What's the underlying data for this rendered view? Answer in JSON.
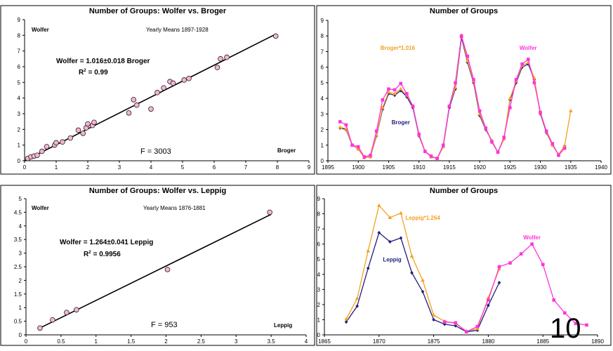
{
  "slide_number": "10",
  "chart_data": [
    {
      "type": "scatter",
      "title": "Number of Groups: Wolfer vs. Broger",
      "series_label_y": "Wolfer",
      "series_label_x": "Broger",
      "subtitle": "Yearly Means 1897-1928",
      "equation": "Wolfer = 1.016±0.018 Broger",
      "r2_label": "R",
      "r2_exp": "2",
      "r2_value": "= 0.99",
      "f_text": "F = 3003",
      "xlim": [
        0,
        9
      ],
      "ylim": [
        0,
        9
      ],
      "xticks": [
        0,
        1,
        2,
        3,
        4,
        5,
        6,
        7,
        8,
        9
      ],
      "yticks": [
        0,
        1,
        2,
        3,
        4,
        5,
        6,
        7,
        8,
        9
      ],
      "fit": {
        "slope": 1.016,
        "x": [
          0,
          7.95
        ]
      },
      "colors": {
        "point": "#f7b4d4",
        "line": "#000000"
      },
      "points": [
        [
          0.1,
          0.15
        ],
        [
          0.2,
          0.25
        ],
        [
          0.3,
          0.3
        ],
        [
          0.4,
          0.35
        ],
        [
          0.55,
          0.6
        ],
        [
          0.7,
          0.9
        ],
        [
          0.95,
          1.0
        ],
        [
          1.0,
          1.15
        ],
        [
          1.2,
          1.2
        ],
        [
          1.45,
          1.45
        ],
        [
          1.7,
          1.95
        ],
        [
          1.85,
          1.75
        ],
        [
          1.95,
          2.1
        ],
        [
          2.0,
          2.35
        ],
        [
          2.15,
          2.25
        ],
        [
          2.2,
          2.45
        ],
        [
          3.3,
          3.05
        ],
        [
          3.45,
          3.9
        ],
        [
          3.55,
          3.55
        ],
        [
          4.0,
          3.3
        ],
        [
          4.2,
          4.35
        ],
        [
          4.4,
          4.65
        ],
        [
          4.6,
          5.05
        ],
        [
          4.7,
          4.95
        ],
        [
          5.05,
          5.15
        ],
        [
          5.2,
          5.25
        ],
        [
          6.1,
          5.95
        ],
        [
          6.2,
          6.5
        ],
        [
          6.4,
          6.6
        ],
        [
          7.95,
          7.95
        ]
      ]
    },
    {
      "type": "line",
      "title": "Number of Groups",
      "xlim": [
        1895,
        1940
      ],
      "ylim": [
        0,
        9
      ],
      "xticks": [
        1895,
        1900,
        1905,
        1910,
        1915,
        1920,
        1925,
        1930,
        1935,
        1940
      ],
      "yticks": [
        0,
        1,
        2,
        3,
        4,
        5,
        6,
        7,
        8,
        9
      ],
      "series": [
        {
          "name": "Broger",
          "color": "#1f1f7a",
          "marker": "diamond",
          "x": [
            1897,
            1898,
            1899,
            1900,
            1901,
            1902,
            1903,
            1904,
            1905,
            1906,
            1907,
            1908,
            1909,
            1910,
            1911,
            1912,
            1913,
            1914,
            1915,
            1916,
            1917,
            1918,
            1919,
            1920,
            1921,
            1922,
            1923,
            1924,
            1925,
            1926,
            1927,
            1928,
            1929,
            1930,
            1931,
            1932,
            1933,
            1934
          ],
          "values": [
            2.1,
            2.0,
            1.0,
            0.75,
            0.2,
            0.25,
            1.6,
            3.3,
            4.3,
            4.2,
            4.5,
            4.1,
            3.4,
            1.6,
            0.6,
            0.25,
            0.15,
            0.9,
            3.4,
            4.6,
            7.9,
            6.3,
            5.0,
            2.9,
            2.0,
            1.3,
            0.55,
            1.4,
            3.9,
            5.0,
            6.0,
            6.2,
            5.2,
            3.0,
            1.8,
            1.0,
            0.4,
            0.95
          ]
        },
        {
          "name": "Broger*1.016",
          "color": "#f5a020",
          "marker": "triangle",
          "x": [
            1897,
            1898,
            1899,
            1900,
            1901,
            1902,
            1903,
            1904,
            1905,
            1906,
            1907,
            1908,
            1909,
            1910,
            1911,
            1912,
            1913,
            1914,
            1915,
            1916,
            1917,
            1918,
            1919,
            1920,
            1921,
            1922,
            1923,
            1924,
            1925,
            1926,
            1927,
            1928,
            1929,
            1930,
            1931,
            1932,
            1933,
            1934,
            1935
          ],
          "values": [
            2.15,
            2.05,
            1.0,
            0.75,
            0.2,
            0.25,
            1.65,
            3.4,
            4.4,
            4.3,
            4.6,
            4.2,
            3.5,
            1.65,
            0.6,
            0.25,
            0.15,
            0.9,
            3.5,
            4.7,
            8.05,
            6.4,
            5.1,
            3.0,
            2.05,
            1.3,
            0.55,
            1.4,
            4.0,
            5.1,
            6.1,
            6.3,
            5.3,
            3.05,
            1.85,
            1.0,
            0.4,
            0.95,
            3.2
          ]
        },
        {
          "name": "Wolfer",
          "color": "#ff33dd",
          "marker": "square",
          "x": [
            1897,
            1898,
            1899,
            1900,
            1901,
            1902,
            1903,
            1904,
            1905,
            1906,
            1907,
            1908,
            1909,
            1910,
            1911,
            1912,
            1913,
            1914,
            1915,
            1916,
            1917,
            1918,
            1919,
            1920,
            1921,
            1922,
            1923,
            1924,
            1925,
            1926,
            1927,
            1928,
            1929,
            1930,
            1931,
            1932,
            1933,
            1934
          ],
          "values": [
            2.5,
            2.3,
            1.0,
            0.9,
            0.25,
            0.35,
            1.9,
            3.9,
            4.6,
            4.55,
            4.95,
            4.3,
            3.5,
            1.7,
            0.6,
            0.3,
            0.15,
            1.0,
            3.5,
            5.0,
            8.0,
            6.7,
            5.2,
            3.2,
            2.1,
            1.2,
            0.55,
            1.5,
            3.4,
            5.2,
            6.2,
            6.5,
            5.0,
            3.1,
            1.9,
            1.1,
            0.35,
            0.8
          ]
        }
      ],
      "labels": [
        {
          "text": "Broger*1.016",
          "color": "#f5a020",
          "x": 1906.5,
          "y": 7.1
        },
        {
          "text": "Wolfer",
          "color": "#ff33dd",
          "x": 1928,
          "y": 7.1
        },
        {
          "text": "Broger",
          "color": "#1f1f7a",
          "x": 1907,
          "y": 2.35
        }
      ]
    },
    {
      "type": "scatter",
      "title": "Number of Groups: Wolfer vs. Leppig",
      "series_label_y": "Wolfer",
      "series_label_x": "Leppig",
      "subtitle": "Yearly Means 1876-1881",
      "equation": "Wolfer = 1.264±0.041 Leppig",
      "r2_label": "R",
      "r2_exp": "2",
      "r2_value": "= 0.9956",
      "f_text": "F = 953",
      "xlim": [
        0,
        4
      ],
      "ylim": [
        0,
        5
      ],
      "xticks": [
        0,
        0.5,
        1,
        1.5,
        2,
        2.5,
        3,
        3.5,
        4
      ],
      "yticks": [
        0,
        0.5,
        1,
        1.5,
        2,
        2.5,
        3,
        3.5,
        4,
        4.5,
        5
      ],
      "fit": {
        "slope": 1.264,
        "x": [
          0.18,
          3.5
        ]
      },
      "colors": {
        "point": "#f7b4d4",
        "line": "#000000"
      },
      "points": [
        [
          0.2,
          0.25
        ],
        [
          0.38,
          0.55
        ],
        [
          0.58,
          0.82
        ],
        [
          0.72,
          0.92
        ],
        [
          2.02,
          2.4
        ],
        [
          3.48,
          4.5
        ]
      ]
    },
    {
      "type": "line",
      "title": "Number of Groups",
      "xlim": [
        1865,
        1890
      ],
      "ylim": [
        0,
        9
      ],
      "xticks": [
        1865,
        1870,
        1875,
        1880,
        1885,
        1890
      ],
      "yticks": [
        0,
        1,
        2,
        3,
        4,
        5,
        6,
        7,
        8,
        9
      ],
      "series": [
        {
          "name": "Leppig",
          "color": "#1f1f7a",
          "marker": "diamond",
          "x": [
            1867,
            1868,
            1869,
            1870,
            1871,
            1872,
            1873,
            1874,
            1875,
            1876,
            1877,
            1878,
            1879,
            1880,
            1881
          ],
          "values": [
            0.85,
            1.9,
            4.4,
            6.75,
            6.15,
            6.4,
            4.1,
            2.85,
            1.0,
            0.7,
            0.6,
            0.2,
            0.3,
            1.95,
            3.45
          ]
        },
        {
          "name": "Leppig*1.264",
          "color": "#f5a020",
          "marker": "triangle",
          "x": [
            1867,
            1868,
            1869,
            1870,
            1871,
            1872,
            1873,
            1874,
            1875,
            1876,
            1877,
            1878,
            1879,
            1880,
            1881
          ],
          "values": [
            1.05,
            2.4,
            5.55,
            8.55,
            7.75,
            8.05,
            5.2,
            3.6,
            1.3,
            0.9,
            0.75,
            0.25,
            0.4,
            2.45,
            4.35
          ]
        },
        {
          "name": "Wolfer",
          "color": "#ff33dd",
          "marker": "square",
          "x": [
            1876,
            1877,
            1878,
            1879,
            1880,
            1881,
            1882,
            1883,
            1884,
            1885,
            1886,
            1887,
            1888,
            1889
          ],
          "values": [
            0.85,
            0.8,
            0.2,
            0.55,
            2.3,
            4.5,
            4.75,
            5.35,
            6.0,
            4.65,
            2.3,
            1.45,
            0.75,
            0.65
          ]
        }
      ],
      "labels": [
        {
          "text": "Leppig*1.264",
          "color": "#f5a020",
          "x": 1874,
          "y": 7.6
        },
        {
          "text": "Wolfer",
          "color": "#ff33dd",
          "x": 1884,
          "y": 6.3
        },
        {
          "text": "Leppig",
          "color": "#1f1f7a",
          "x": 1871.2,
          "y": 4.85
        }
      ]
    }
  ]
}
